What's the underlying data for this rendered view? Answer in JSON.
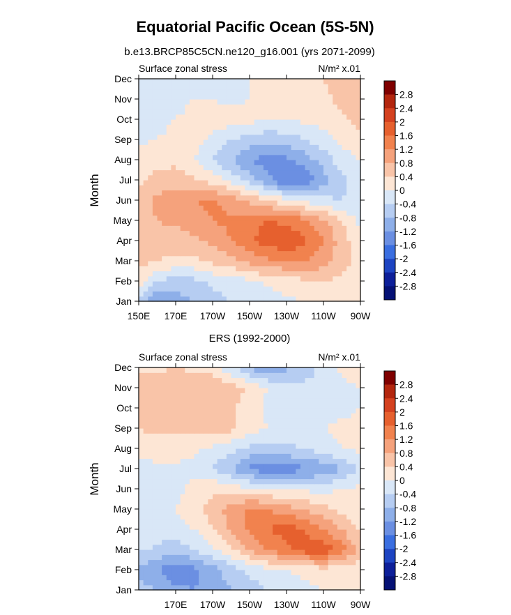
{
  "figure": {
    "title": "Equatorial Pacific Ocean (5S-5N)",
    "subtitle": "b.e13.BRCP85C5CN.ne120_g16.001 (yrs 2071-2099)"
  },
  "colorbar": {
    "labels": [
      "2.8",
      "2.4",
      "2",
      "1.6",
      "1.2",
      "0.8",
      "0.4",
      "0",
      "-0.4",
      "-0.8",
      "-1.2",
      "-1.6",
      "-2",
      "-2.4",
      "-2.8"
    ],
    "colors": [
      "#7f0000",
      "#b3260e",
      "#d4411f",
      "#e6602e",
      "#f1824e",
      "#f5a27c",
      "#f9c4a8",
      "#fde6d5",
      "#d9e7f7",
      "#b6cdf2",
      "#8eafe9",
      "#6b8fe2",
      "#3a6ee0",
      "#1d44c2",
      "#0d1f99",
      "#051175"
    ]
  },
  "chart_data": [
    {
      "type": "heatmap",
      "name": "model",
      "left_label": "Surface zonal stress",
      "right_label": "N/m² x.01",
      "xlabel": "",
      "ylabel": "Month",
      "x_ticks": [
        "150E",
        "170E",
        "170W",
        "150W",
        "130W",
        "110W",
        "90W"
      ],
      "y_ticks": [
        "Jan",
        "Feb",
        "Mar",
        "Apr",
        "May",
        "Jun",
        "Jul",
        "Aug",
        "Sep",
        "Oct",
        "Nov",
        "Dec"
      ],
      "x_range": [
        150,
        270
      ],
      "y_range": [
        1,
        12
      ],
      "grid": [
        [
          -0.5,
          -1.2,
          -1.0,
          -0.8,
          -0.6,
          -0.4,
          -0.3,
          -0.2,
          -0.1,
          0.0,
          0.1,
          0.1,
          0.2
        ],
        [
          0.2,
          -0.4,
          -0.6,
          -0.5,
          -0.3,
          -0.2,
          -0.1,
          0.1,
          0.2,
          0.3,
          0.4,
          0.3,
          0.2
        ],
        [
          0.5,
          0.4,
          0.3,
          0.3,
          0.5,
          0.7,
          0.9,
          1.1,
          1.2,
          1.2,
          1.0,
          0.6,
          0.2
        ],
        [
          0.7,
          0.6,
          0.6,
          0.7,
          0.9,
          1.2,
          1.5,
          1.8,
          2.0,
          1.7,
          1.2,
          0.6,
          0.1
        ],
        [
          0.7,
          0.8,
          0.9,
          1.0,
          1.2,
          1.3,
          1.5,
          1.6,
          1.5,
          1.3,
          0.9,
          0.4,
          -0.1
        ],
        [
          0.6,
          0.9,
          1.1,
          1.2,
          1.3,
          1.0,
          0.7,
          0.4,
          0.1,
          -0.1,
          -0.3,
          -0.4,
          -0.3
        ],
        [
          0.3,
          0.5,
          0.6,
          0.5,
          0.2,
          -0.1,
          -0.6,
          -1.1,
          -1.6,
          -1.5,
          -1.0,
          -0.5,
          -0.1
        ],
        [
          0.2,
          0.3,
          0.3,
          0.0,
          -0.4,
          -0.8,
          -1.2,
          -1.4,
          -1.3,
          -1.0,
          -0.6,
          -0.2,
          0.0
        ],
        [
          -0.1,
          0.0,
          0.1,
          0.2,
          -0.1,
          -0.4,
          -0.6,
          -0.7,
          -0.6,
          -0.4,
          -0.2,
          0.1,
          0.2
        ],
        [
          -0.2,
          -0.1,
          0.0,
          0.1,
          0.2,
          0.2,
          0.1,
          0.0,
          0.0,
          0.1,
          0.2,
          0.3,
          0.6
        ],
        [
          -0.2,
          -0.2,
          -0.1,
          0.0,
          0.0,
          -0.1,
          0.0,
          0.1,
          0.1,
          0.2,
          0.3,
          0.5,
          0.6
        ],
        [
          -0.3,
          -0.4,
          -0.4,
          -0.3,
          -0.2,
          -0.1,
          0.0,
          0.0,
          0.1,
          0.2,
          0.4,
          0.6,
          0.5
        ]
      ]
    },
    {
      "type": "heatmap",
      "name": "observed",
      "title": "ERS (1992-2000)",
      "left_label": "Surface zonal stress",
      "right_label": "N/m² x.01",
      "xlabel": "",
      "ylabel": "Month",
      "x_ticks": [
        "170E",
        "170W",
        "150W",
        "130W",
        "110W",
        "90W"
      ],
      "y_ticks": [
        "Jan",
        "Feb",
        "Mar",
        "Apr",
        "May",
        "Jun",
        "Jul",
        "Aug",
        "Sep",
        "Oct",
        "Nov",
        "Dec"
      ],
      "x_range": [
        150,
        270
      ],
      "y_range": [
        1,
        12
      ],
      "grid": [
        [
          -0.6,
          -0.8,
          -1.1,
          -1.2,
          -1.0,
          -0.8,
          -0.6,
          -0.4,
          -0.2,
          -0.1,
          0.0,
          0.1,
          0.1
        ],
        [
          -0.9,
          -1.2,
          -1.5,
          -1.3,
          -1.0,
          -0.6,
          -0.3,
          -0.1,
          0.0,
          0.1,
          0.2,
          0.2,
          0.2
        ],
        [
          -0.3,
          -0.5,
          -0.6,
          -0.4,
          -0.1,
          0.3,
          0.8,
          1.2,
          1.5,
          1.8,
          1.9,
          1.4,
          0.6
        ],
        [
          -0.2,
          -0.2,
          -0.2,
          0.0,
          0.4,
          0.9,
          1.3,
          1.6,
          1.8,
          1.6,
          1.2,
          0.8,
          0.3
        ],
        [
          -0.3,
          -0.2,
          0.0,
          0.3,
          0.6,
          1.0,
          1.3,
          1.2,
          1.0,
          0.8,
          0.5,
          0.3,
          0.1
        ],
        [
          -0.3,
          -0.2,
          -0.1,
          0.1,
          0.3,
          0.2,
          0.1,
          0.0,
          -0.1,
          -0.1,
          -0.1,
          0.0,
          0.1
        ],
        [
          -0.2,
          -0.1,
          -0.1,
          -0.1,
          -0.4,
          -0.8,
          -1.3,
          -1.5,
          -1.4,
          -1.3,
          -1.1,
          -0.8,
          -0.4
        ],
        [
          0.2,
          0.2,
          0.2,
          0.1,
          -0.1,
          -0.3,
          -0.5,
          -0.6,
          -0.5,
          -0.4,
          -0.2,
          0.0,
          0.1
        ],
        [
          0.4,
          0.5,
          0.5,
          0.5,
          0.6,
          0.5,
          0.2,
          0.0,
          -0.1,
          -0.1,
          0.0,
          0.1,
          0.1
        ],
        [
          0.5,
          0.6,
          0.7,
          0.6,
          0.6,
          0.5,
          0.2,
          -0.1,
          -0.2,
          -0.3,
          -0.2,
          -0.1,
          0.0
        ],
        [
          0.6,
          0.6,
          0.7,
          0.7,
          0.8,
          0.6,
          0.3,
          0.0,
          -0.1,
          -0.3,
          -0.2,
          -0.1,
          0.0
        ],
        [
          0.3,
          0.3,
          0.4,
          0.3,
          0.2,
          -0.3,
          -0.9,
          -1.1,
          -0.9,
          -0.6,
          -0.3,
          0.1,
          0.2
        ]
      ]
    }
  ]
}
